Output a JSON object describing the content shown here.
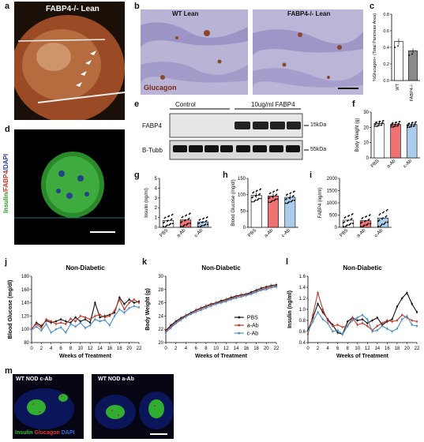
{
  "panels": {
    "a": {
      "letter": "a",
      "title": "FABP4-/- Lean"
    },
    "b": {
      "letter": "b",
      "left_title": "WT Lean",
      "right_title": "FABP4-/- Lean",
      "stain": "Glucagon"
    },
    "c": {
      "letter": "c"
    },
    "d": {
      "letter": "d",
      "label_insulin": "Insulin",
      "label_fabp4": "/FABP4",
      "label_dapi": "/DAPI"
    },
    "e": {
      "letter": "e",
      "control": "Control",
      "treatment": "10ug/ml FABP4",
      "row1": "FABP4",
      "row2": "B-Tubb",
      "kda1": "15kDa",
      "kda2": "55kDa"
    },
    "f": {
      "letter": "f"
    },
    "g": {
      "letter": "g"
    },
    "h": {
      "letter": "h"
    },
    "i": {
      "letter": "i"
    },
    "j": {
      "letter": "j"
    },
    "k": {
      "letter": "k"
    },
    "l": {
      "letter": "l"
    },
    "m": {
      "letter": "m",
      "left_title": "WT NOD c-Ab",
      "right_title": "WT NOD a-Ab",
      "leg_insulin": "Insulin",
      "leg_glucagon": "Glucagon",
      "leg_dapi": "DAPI"
    }
  },
  "colors": {
    "pbs": "#ffffff",
    "aab": "#f07373",
    "cab": "#a9cdea",
    "black": "#111111",
    "red": "#c0392b",
    "blue": "#4a8fc6"
  },
  "chart_data": [
    {
      "id": "c",
      "type": "bar",
      "categories": [
        "WT",
        "FABP4-/-"
      ],
      "values": [
        0.47,
        0.36
      ],
      "ylabel": "%Glucagon+ (Total Pancreas Area)",
      "ylim": [
        0,
        0.8
      ],
      "yticks": [
        "0.0",
        "0.2",
        "0.4",
        "0.6",
        "0.8"
      ]
    },
    {
      "id": "f",
      "type": "bar",
      "categories": [
        "PBS",
        "a-Ab",
        "c-Ab"
      ],
      "values": [
        22.5,
        22.0,
        21.8
      ],
      "ylabel": "Body Weight (g)",
      "ylim": [
        0,
        30
      ],
      "yticks": [
        "0",
        "10",
        "20",
        "30"
      ]
    },
    {
      "id": "g",
      "type": "bar",
      "categories": [
        "PBS",
        "a-Ab",
        "c-Ab"
      ],
      "values": [
        0.7,
        0.75,
        0.55
      ],
      "ylabel": "Insulin (ng/ml)",
      "ylim": [
        0,
        5
      ],
      "yticks": [
        "0",
        "1",
        "2",
        "3",
        "4",
        "5"
      ]
    },
    {
      "id": "h",
      "type": "bar",
      "categories": [
        "PBS",
        "a-Ab",
        "c-Ab"
      ],
      "values": [
        98,
        96,
        92
      ],
      "ylabel": "Blood Glucose (mg/dl)",
      "ylim": [
        0,
        150
      ],
      "yticks": [
        "0",
        "50",
        "100",
        "150"
      ]
    },
    {
      "id": "i",
      "type": "bar",
      "categories": [
        "PBS",
        "a-Ab",
        "c-Ab"
      ],
      "values": [
        290,
        270,
        380
      ],
      "ylabel": "FABP4 (ng/ml)",
      "ylim": [
        0,
        2000
      ],
      "yticks": [
        "0",
        "500",
        "1000",
        "1500",
        "2000"
      ]
    },
    {
      "id": "j",
      "type": "line",
      "title": "Non-Diabetic",
      "xlabel": "Weeks of Treatment",
      "ylabel": "Blood Glucose (mg/dl)",
      "x": [
        0,
        1,
        2,
        3,
        4,
        5,
        6,
        7,
        8,
        9,
        10,
        11,
        12,
        13,
        14,
        15,
        16,
        17,
        18,
        19,
        20,
        21,
        22
      ],
      "xticks": [
        "0",
        "2",
        "4",
        "6",
        "8",
        "10",
        "12",
        "14",
        "16",
        "18",
        "20",
        "22"
      ],
      "ylim": [
        80,
        180
      ],
      "yticks": [
        "80",
        "100",
        "120",
        "140",
        "160",
        "180"
      ],
      "series": [
        {
          "name": "PBS",
          "values": [
            100,
            110,
            105,
            113,
            110,
            112,
            115,
            112,
            110,
            118,
            112,
            115,
            110,
            140,
            118,
            120,
            122,
            125,
            148,
            138,
            145,
            140,
            142
          ]
        },
        {
          "name": "a-Ab",
          "values": [
            101,
            108,
            102,
            115,
            112,
            108,
            110,
            108,
            116,
            112,
            120,
            118,
            115,
            120,
            122,
            118,
            120,
            128,
            145,
            130,
            140,
            145,
            140
          ]
        },
        {
          "name": "c-Ab",
          "values": [
            99,
            104,
            98,
            108,
            95,
            100,
            103,
            95,
            108,
            104,
            110,
            102,
            106,
            115,
            112,
            114,
            106,
            120,
            130,
            125,
            132,
            135,
            133
          ]
        }
      ]
    },
    {
      "id": "k",
      "type": "line",
      "title": "Non-Diabetic",
      "xlabel": "Weeks of Treatment",
      "ylabel": "Body Weight (g)",
      "x": [
        0,
        1,
        2,
        3,
        4,
        5,
        6,
        7,
        8,
        9,
        10,
        11,
        12,
        13,
        14,
        15,
        16,
        17,
        18,
        19,
        20,
        21,
        22
      ],
      "xticks": [
        "0",
        "2",
        "4",
        "6",
        "8",
        "10",
        "12",
        "14",
        "16",
        "18",
        "20",
        "22"
      ],
      "ylim": [
        20,
        30
      ],
      "yticks": [
        "20",
        "22",
        "24",
        "26",
        "28",
        "30"
      ],
      "series": [
        {
          "name": "PBS",
          "values": [
            21.8,
            22.6,
            23.2,
            23.7,
            24.1,
            24.5,
            24.9,
            25.2,
            25.5,
            25.8,
            26.0,
            26.3,
            26.5,
            26.8,
            27.0,
            27.2,
            27.3,
            27.6,
            27.9,
            28.2,
            28.4,
            28.6,
            28.7
          ]
        },
        {
          "name": "a-Ab",
          "values": [
            21.7,
            22.4,
            23.0,
            23.5,
            24.0,
            24.4,
            24.8,
            25.1,
            25.4,
            25.7,
            25.9,
            26.1,
            26.4,
            26.6,
            26.9,
            27.1,
            27.2,
            27.4,
            27.7,
            28.0,
            28.2,
            28.4,
            28.5
          ]
        },
        {
          "name": "c-Ab",
          "values": [
            21.5,
            22.2,
            22.9,
            23.4,
            23.9,
            24.3,
            24.6,
            24.9,
            25.2,
            25.5,
            25.8,
            26.0,
            26.2,
            26.5,
            26.7,
            26.9,
            27.1,
            27.3,
            27.6,
            27.9,
            28.0,
            28.3,
            28.4
          ]
        }
      ]
    },
    {
      "id": "l",
      "type": "line",
      "title": "Non-Diabetic",
      "xlabel": "Weeks of Treatment",
      "ylabel": "Insulin (ng/ml)",
      "x": [
        0,
        1,
        2,
        3,
        4,
        5,
        6,
        7,
        8,
        9,
        10,
        11,
        12,
        13,
        14,
        15,
        16,
        17,
        18,
        19,
        20,
        21,
        22
      ],
      "xticks": [
        "0",
        "2",
        "4",
        "6",
        "8",
        "10",
        "12",
        "14",
        "16",
        "18",
        "20",
        "22"
      ],
      "ylim": [
        0.4,
        1.6
      ],
      "yticks": [
        "0.4",
        "0.6",
        "0.8",
        "1.0",
        "1.2",
        "1.4",
        "1.6"
      ],
      "series": [
        {
          "name": "PBS",
          "values": [
            0.62,
            0.85,
            1.1,
            0.95,
            0.82,
            0.72,
            0.58,
            0.55,
            0.78,
            0.85,
            0.8,
            0.82,
            0.75,
            0.8,
            0.85,
            0.72,
            0.78,
            0.82,
            1.05,
            1.2,
            1.3,
            1.1,
            0.95
          ]
        },
        {
          "name": "a-Ab",
          "values": [
            0.55,
            0.9,
            1.3,
            1.0,
            0.8,
            0.7,
            0.72,
            0.68,
            0.7,
            0.85,
            0.72,
            0.75,
            0.7,
            0.62,
            0.7,
            0.75,
            0.8,
            0.78,
            0.8,
            0.9,
            0.85,
            0.8,
            0.78
          ]
        },
        {
          "name": "c-Ab",
          "values": [
            0.6,
            0.78,
            0.95,
            0.82,
            0.75,
            0.6,
            0.62,
            0.55,
            0.7,
            0.8,
            0.85,
            0.9,
            0.82,
            0.6,
            0.62,
            0.7,
            0.65,
            0.6,
            0.65,
            0.82,
            0.88,
            0.72,
            0.7
          ]
        }
      ]
    }
  ]
}
